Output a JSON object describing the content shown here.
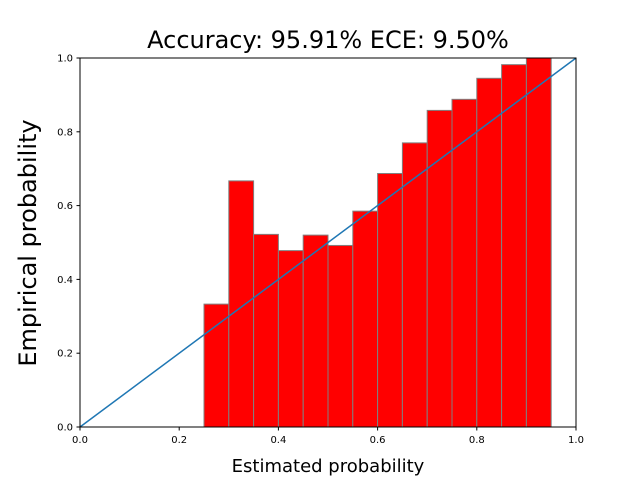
{
  "chart_data": {
    "type": "bar",
    "title": "Accuracy: 95.91% ECE: 9.50%",
    "xlabel": "Estimated probability",
    "ylabel": "Empirical probability",
    "xlim": [
      0.0,
      1.0
    ],
    "ylim": [
      0.0,
      1.0
    ],
    "bin_width": 0.05,
    "x_ticks": [
      "0.0",
      "0.2",
      "0.4",
      "0.6",
      "0.8",
      "1.0"
    ],
    "y_ticks": [
      "0.0",
      "0.2",
      "0.4",
      "0.6",
      "0.8",
      "1.0"
    ],
    "bins": [
      {
        "x": 0.25,
        "value": 0.333
      },
      {
        "x": 0.3,
        "value": 0.667
      },
      {
        "x": 0.35,
        "value": 0.522
      },
      {
        "x": 0.4,
        "value": 0.478
      },
      {
        "x": 0.45,
        "value": 0.52
      },
      {
        "x": 0.5,
        "value": 0.492
      },
      {
        "x": 0.55,
        "value": 0.585
      },
      {
        "x": 0.6,
        "value": 0.687
      },
      {
        "x": 0.65,
        "value": 0.77
      },
      {
        "x": 0.7,
        "value": 0.858
      },
      {
        "x": 0.75,
        "value": 0.888
      },
      {
        "x": 0.8,
        "value": 0.945
      },
      {
        "x": 0.85,
        "value": 0.982
      },
      {
        "x": 0.9,
        "value": 1.0
      }
    ],
    "reference_line": {
      "x": [
        0.0,
        1.0
      ],
      "y": [
        0.0,
        1.0
      ]
    },
    "grid": false,
    "colors": {
      "bar_fill": "#ff0000",
      "bar_edge": "#808080",
      "line": "#1f77b4"
    }
  }
}
